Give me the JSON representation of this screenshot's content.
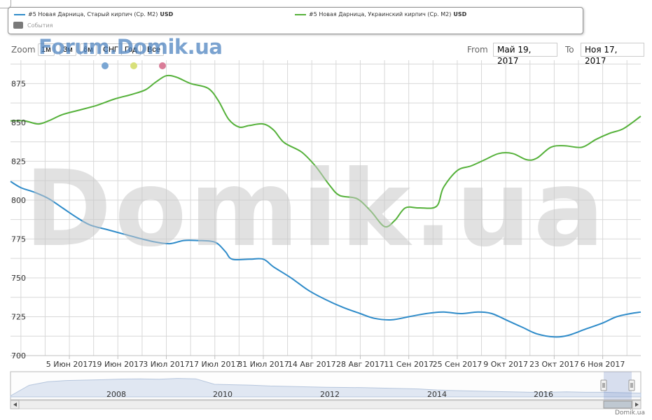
{
  "legend": {
    "series_1_label": "#5 Новая Дарница, Старый кирпич (Ср. М2)",
    "series_1_unit": "USD",
    "series_2_label": "#5 Новая Дарница, Украинский кирпич (Ср. М2)",
    "series_2_unit": "USD",
    "events_label": "События"
  },
  "zoom": {
    "label": "Zoom",
    "buttons": [
      "1м",
      "3м",
      "6м",
      "СНГ",
      "Год",
      "Все"
    ]
  },
  "range": {
    "from_label": "From",
    "from_value": "Май 19, 2017",
    "to_label": "To",
    "to_value": "Ноя 17, 2017"
  },
  "watermark_top": "Forum.Domik.ua",
  "watermark_big": "Domik.ua",
  "credit": "Domik.ua",
  "colors": {
    "series_1": "#2e8bc9",
    "series_2": "#55b13a",
    "grid": "#d8d8d8",
    "axis_text": "#333333",
    "event_marker_1": "#7aa6d3",
    "event_marker_2": "#d8e07a",
    "event_marker_3": "#d97d98"
  },
  "chart_data": {
    "type": "line",
    "ylim": [
      700,
      890
    ],
    "yticks": [
      700,
      725,
      750,
      775,
      800,
      825,
      850,
      875
    ],
    "xlim": [
      "2017-05-19",
      "2017-11-17"
    ],
    "xticks": [
      {
        "date": "2017-06-05",
        "label": "5 Июн 2017"
      },
      {
        "date": "2017-06-19",
        "label": "19 Июн 2017"
      },
      {
        "date": "2017-07-03",
        "label": "3 Июл 2017"
      },
      {
        "date": "2017-07-17",
        "label": "17 Июл 2017"
      },
      {
        "date": "2017-07-31",
        "label": "31 Июл 2017"
      },
      {
        "date": "2017-08-14",
        "label": "14 Авг 2017"
      },
      {
        "date": "2017-08-28",
        "label": "28 Авг 2017"
      },
      {
        "date": "2017-09-11",
        "label": "11 Сен 2017"
      },
      {
        "date": "2017-09-25",
        "label": "25 Сен 2017"
      },
      {
        "date": "2017-10-09",
        "label": "9 Окт 2017"
      },
      {
        "date": "2017-10-23",
        "label": "23 Окт 2017"
      },
      {
        "date": "2017-11-06",
        "label": "6 Ноя 2017"
      }
    ],
    "series": [
      {
        "name": "#5 Новая Дарница, Старый кирпич (Ср. М2)",
        "points": [
          [
            "2017-05-19",
            812
          ],
          [
            "2017-05-22",
            808
          ],
          [
            "2017-05-26",
            805
          ],
          [
            "2017-05-30",
            801
          ],
          [
            "2017-06-03",
            795
          ],
          [
            "2017-06-07",
            789
          ],
          [
            "2017-06-11",
            784
          ],
          [
            "2017-06-16",
            781
          ],
          [
            "2017-06-21",
            778
          ],
          [
            "2017-06-26",
            775
          ],
          [
            "2017-06-30",
            773
          ],
          [
            "2017-07-04",
            772
          ],
          [
            "2017-07-08",
            774
          ],
          [
            "2017-07-12",
            774
          ],
          [
            "2017-07-17",
            773
          ],
          [
            "2017-07-20",
            767
          ],
          [
            "2017-07-22",
            762
          ],
          [
            "2017-07-27",
            762
          ],
          [
            "2017-07-31",
            762
          ],
          [
            "2017-08-03",
            757
          ],
          [
            "2017-08-08",
            750
          ],
          [
            "2017-08-13",
            742
          ],
          [
            "2017-08-18",
            736
          ],
          [
            "2017-08-23",
            731
          ],
          [
            "2017-08-28",
            727
          ],
          [
            "2017-09-01",
            724
          ],
          [
            "2017-09-06",
            723
          ],
          [
            "2017-09-11",
            725
          ],
          [
            "2017-09-16",
            727
          ],
          [
            "2017-09-21",
            728
          ],
          [
            "2017-09-26",
            727
          ],
          [
            "2017-10-01",
            728
          ],
          [
            "2017-10-05",
            727
          ],
          [
            "2017-10-10",
            722
          ],
          [
            "2017-10-14",
            718
          ],
          [
            "2017-10-18",
            714
          ],
          [
            "2017-10-23",
            712
          ],
          [
            "2017-10-27",
            713
          ],
          [
            "2017-11-01",
            717
          ],
          [
            "2017-11-06",
            721
          ],
          [
            "2017-11-10",
            725
          ],
          [
            "2017-11-14",
            727
          ],
          [
            "2017-11-17",
            728
          ]
        ]
      },
      {
        "name": "#5 Новая Дарница, Украинский кирпич (Ср. М2)",
        "points": [
          [
            "2017-05-19",
            851
          ],
          [
            "2017-05-23",
            851
          ],
          [
            "2017-05-27",
            849
          ],
          [
            "2017-05-30",
            851
          ],
          [
            "2017-06-03",
            855
          ],
          [
            "2017-06-08",
            858
          ],
          [
            "2017-06-13",
            861
          ],
          [
            "2017-06-18",
            865
          ],
          [
            "2017-06-23",
            868
          ],
          [
            "2017-06-27",
            871
          ],
          [
            "2017-06-30",
            876
          ],
          [
            "2017-07-03",
            880
          ],
          [
            "2017-07-06",
            879
          ],
          [
            "2017-07-10",
            875
          ],
          [
            "2017-07-15",
            872
          ],
          [
            "2017-07-18",
            864
          ],
          [
            "2017-07-21",
            852
          ],
          [
            "2017-07-24",
            847
          ],
          [
            "2017-07-27",
            848
          ],
          [
            "2017-07-31",
            849
          ],
          [
            "2017-08-03",
            845
          ],
          [
            "2017-08-06",
            837
          ],
          [
            "2017-08-11",
            831
          ],
          [
            "2017-08-15",
            822
          ],
          [
            "2017-08-19",
            810
          ],
          [
            "2017-08-22",
            803
          ],
          [
            "2017-08-27",
            801
          ],
          [
            "2017-08-31",
            793
          ],
          [
            "2017-09-04",
            783
          ],
          [
            "2017-09-07",
            787
          ],
          [
            "2017-09-10",
            795
          ],
          [
            "2017-09-14",
            795
          ],
          [
            "2017-09-19",
            796
          ],
          [
            "2017-09-21",
            808
          ],
          [
            "2017-09-25",
            819
          ],
          [
            "2017-09-29",
            822
          ],
          [
            "2017-10-03",
            826
          ],
          [
            "2017-10-07",
            830
          ],
          [
            "2017-10-11",
            830
          ],
          [
            "2017-10-15",
            826
          ],
          [
            "2017-10-18",
            827
          ],
          [
            "2017-10-22",
            834
          ],
          [
            "2017-10-26",
            835
          ],
          [
            "2017-10-31",
            834
          ],
          [
            "2017-11-04",
            839
          ],
          [
            "2017-11-08",
            843
          ],
          [
            "2017-11-12",
            846
          ],
          [
            "2017-11-17",
            854
          ]
        ]
      }
    ],
    "navigator": {
      "labels": [
        "2008",
        "2010",
        "2012",
        "2014",
        "2016"
      ]
    }
  }
}
